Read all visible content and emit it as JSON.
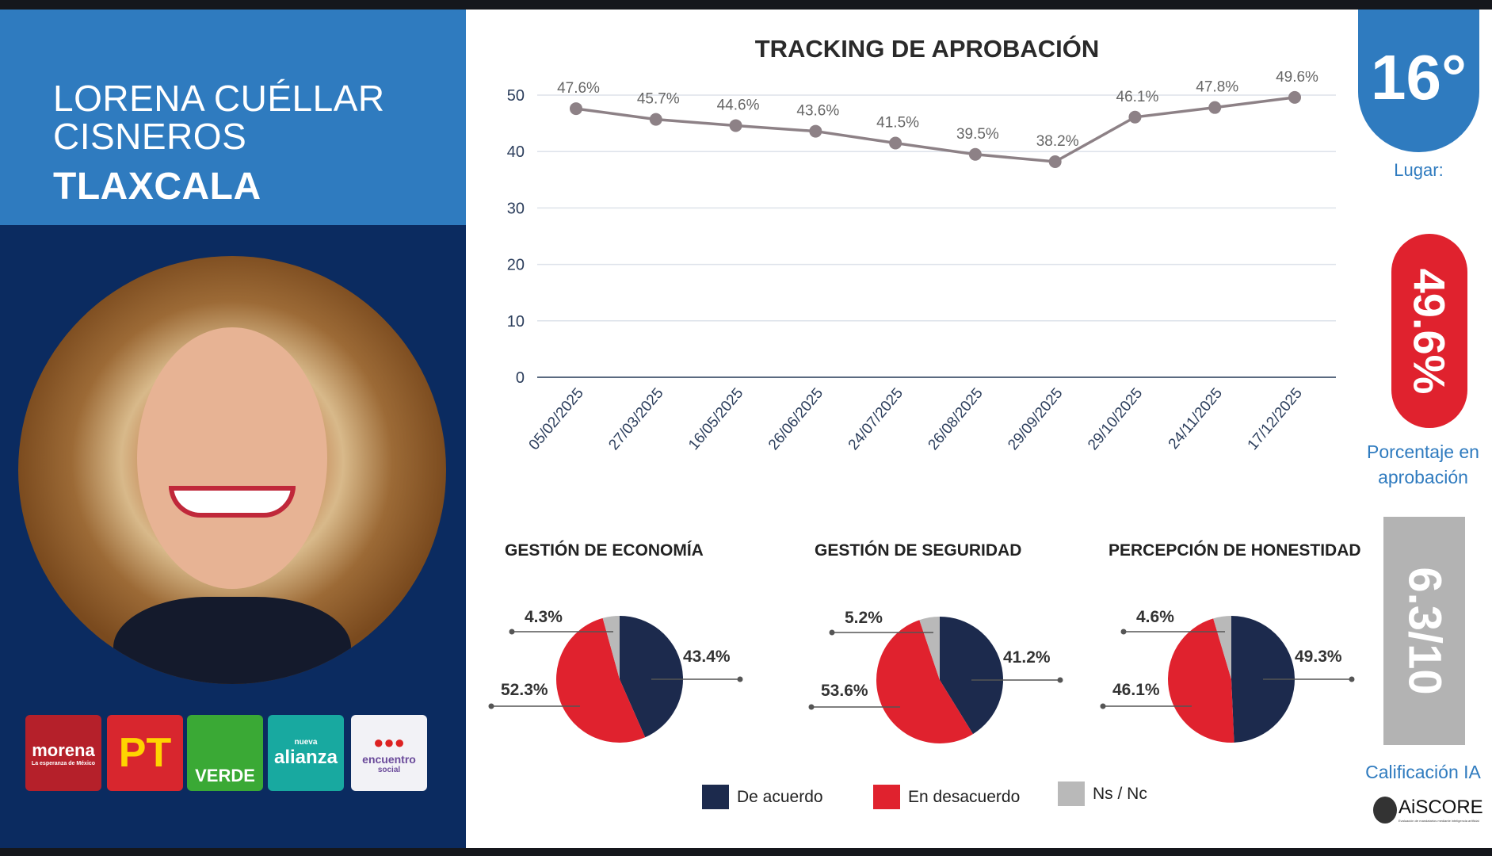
{
  "profile": {
    "name_line1": "LORENA CUÉLLAR",
    "name_line2": "CISNEROS",
    "state": "TLAXCALA"
  },
  "parties": [
    {
      "text": "morena",
      "sub": "La esperanza de México",
      "color": "#b5202a"
    },
    {
      "text": "PT",
      "color": "#d8262e"
    },
    {
      "text": "VERDE",
      "color": "#3aa935"
    },
    {
      "text": "alianza",
      "sub": "nueva",
      "color": "#18a9a0"
    },
    {
      "text": "encuentro",
      "sub": "social",
      "color": "#f2f2f6"
    }
  ],
  "ranking": {
    "value": "16°",
    "label": "Lugar:"
  },
  "approval": {
    "value": "49.6%",
    "label_line1": "Porcentaje en",
    "label_line2": "aprobación",
    "color": "#e0222e"
  },
  "ai_score": {
    "value": "6.3/10",
    "label": "Calificación IA",
    "logo_text": "AiSCORE",
    "logo_sub": "Evaluación de mandatarios mediante inteligencia artificial"
  },
  "chart_data": [
    {
      "type": "line",
      "title": "TRACKING DE APROBACIÓN",
      "ylim": [
        0,
        50
      ],
      "yticks": [
        0,
        10,
        20,
        30,
        40,
        50
      ],
      "grid": true,
      "categories": [
        "05/02/2025",
        "27/03/2025",
        "16/05/2025",
        "26/06/2025",
        "24/07/2025",
        "26/08/2025",
        "29/09/2025",
        "29/10/2025",
        "24/11/2025",
        "17/12/2025"
      ],
      "values": [
        47.6,
        45.7,
        44.6,
        43.6,
        41.5,
        39.5,
        38.2,
        46.1,
        47.8,
        49.6
      ],
      "labels": [
        "47.6%",
        "45.7%",
        "44.6%",
        "43.6%",
        "41.5%",
        "39.5%",
        "38.2%",
        "46.1%",
        "47.8%",
        "49.6%"
      ],
      "color": "#8d8186"
    },
    {
      "type": "pie",
      "title": "GESTIÓN DE ECONOMÍA",
      "values": [
        43.4,
        52.3,
        4.3
      ],
      "labels": [
        "43.4%",
        "52.3%",
        "4.3%"
      ]
    },
    {
      "type": "pie",
      "title": "GESTIÓN DE SEGURIDAD",
      "values": [
        41.2,
        53.6,
        5.2
      ],
      "labels": [
        "41.2%",
        "53.6%",
        "5.2%"
      ]
    },
    {
      "type": "pie",
      "title": "PERCEPCIÓN DE HONESTIDAD",
      "values": [
        49.3,
        46.1,
        4.6
      ],
      "labels": [
        "49.3%",
        "46.1%",
        "4.6%"
      ]
    }
  ],
  "legend": [
    {
      "label": "De acuerdo",
      "color": "#1c2a4d"
    },
    {
      "label": "En desacuerdo",
      "color": "#e0222e"
    },
    {
      "label": "Ns / Nc",
      "color": "#b9b9b9"
    }
  ]
}
